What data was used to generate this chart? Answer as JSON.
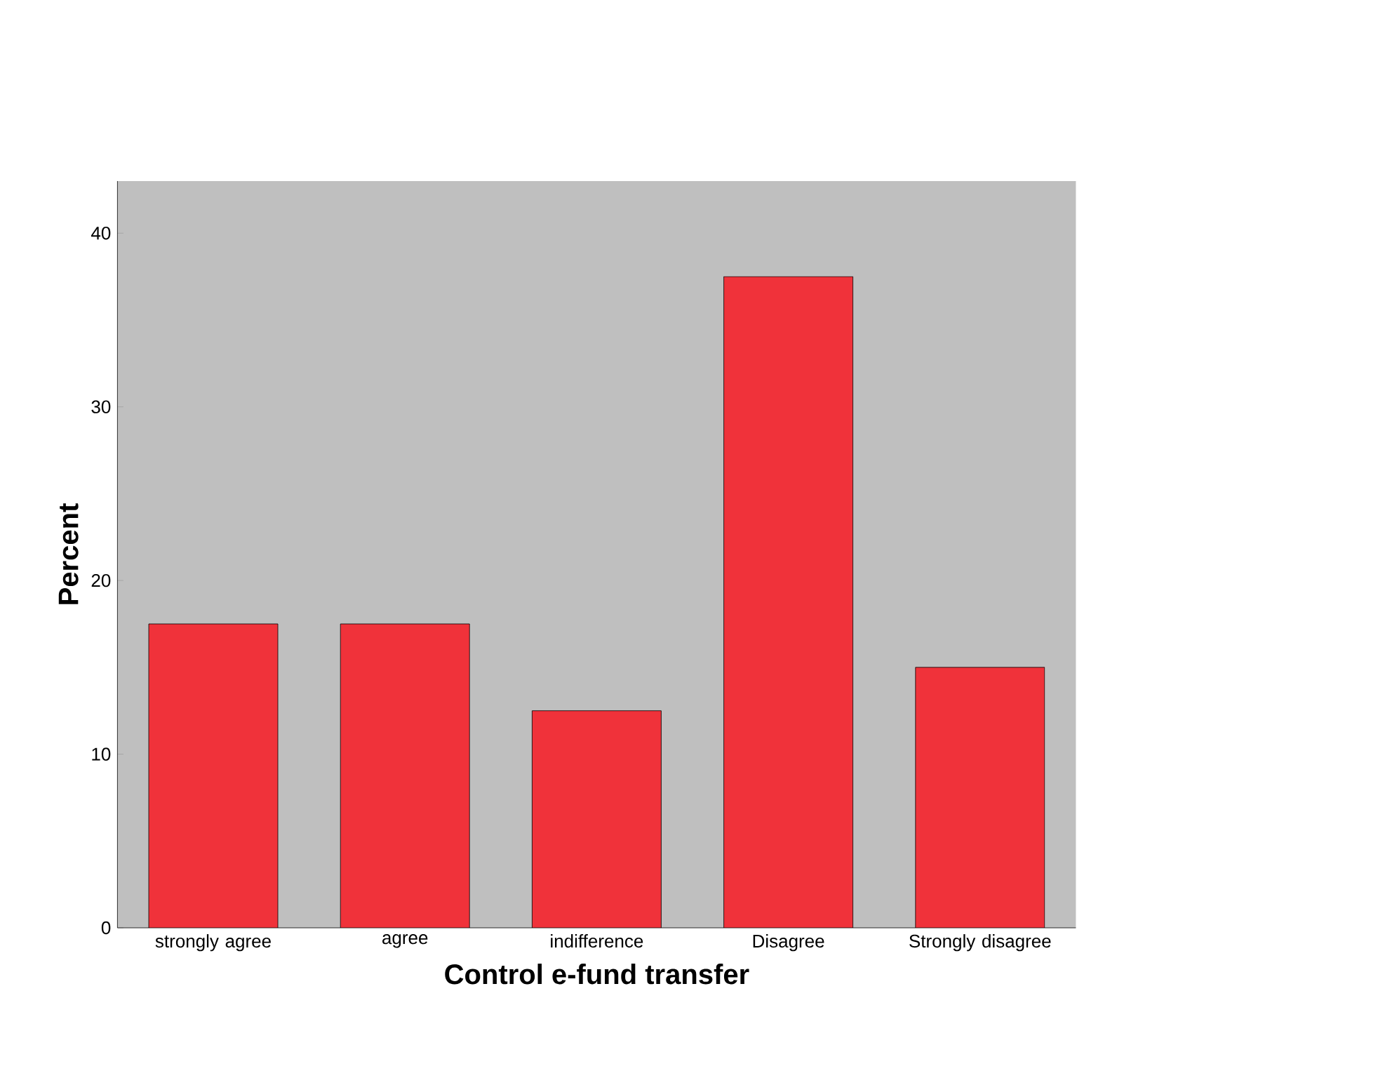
{
  "chart_data": {
    "type": "bar",
    "xlabel": "Control e-fund transfer",
    "ylabel": "Percent",
    "categories": [
      "strongly agree",
      "agree",
      "indifference",
      "Disagree",
      "Strongly disagree"
    ],
    "values": [
      17.5,
      17.5,
      12.5,
      37.5,
      15
    ],
    "color": "#f0323a",
    "ylim": [
      0,
      43
    ],
    "yticks": [
      0,
      10,
      20,
      30,
      40
    ],
    "grid": false
  }
}
